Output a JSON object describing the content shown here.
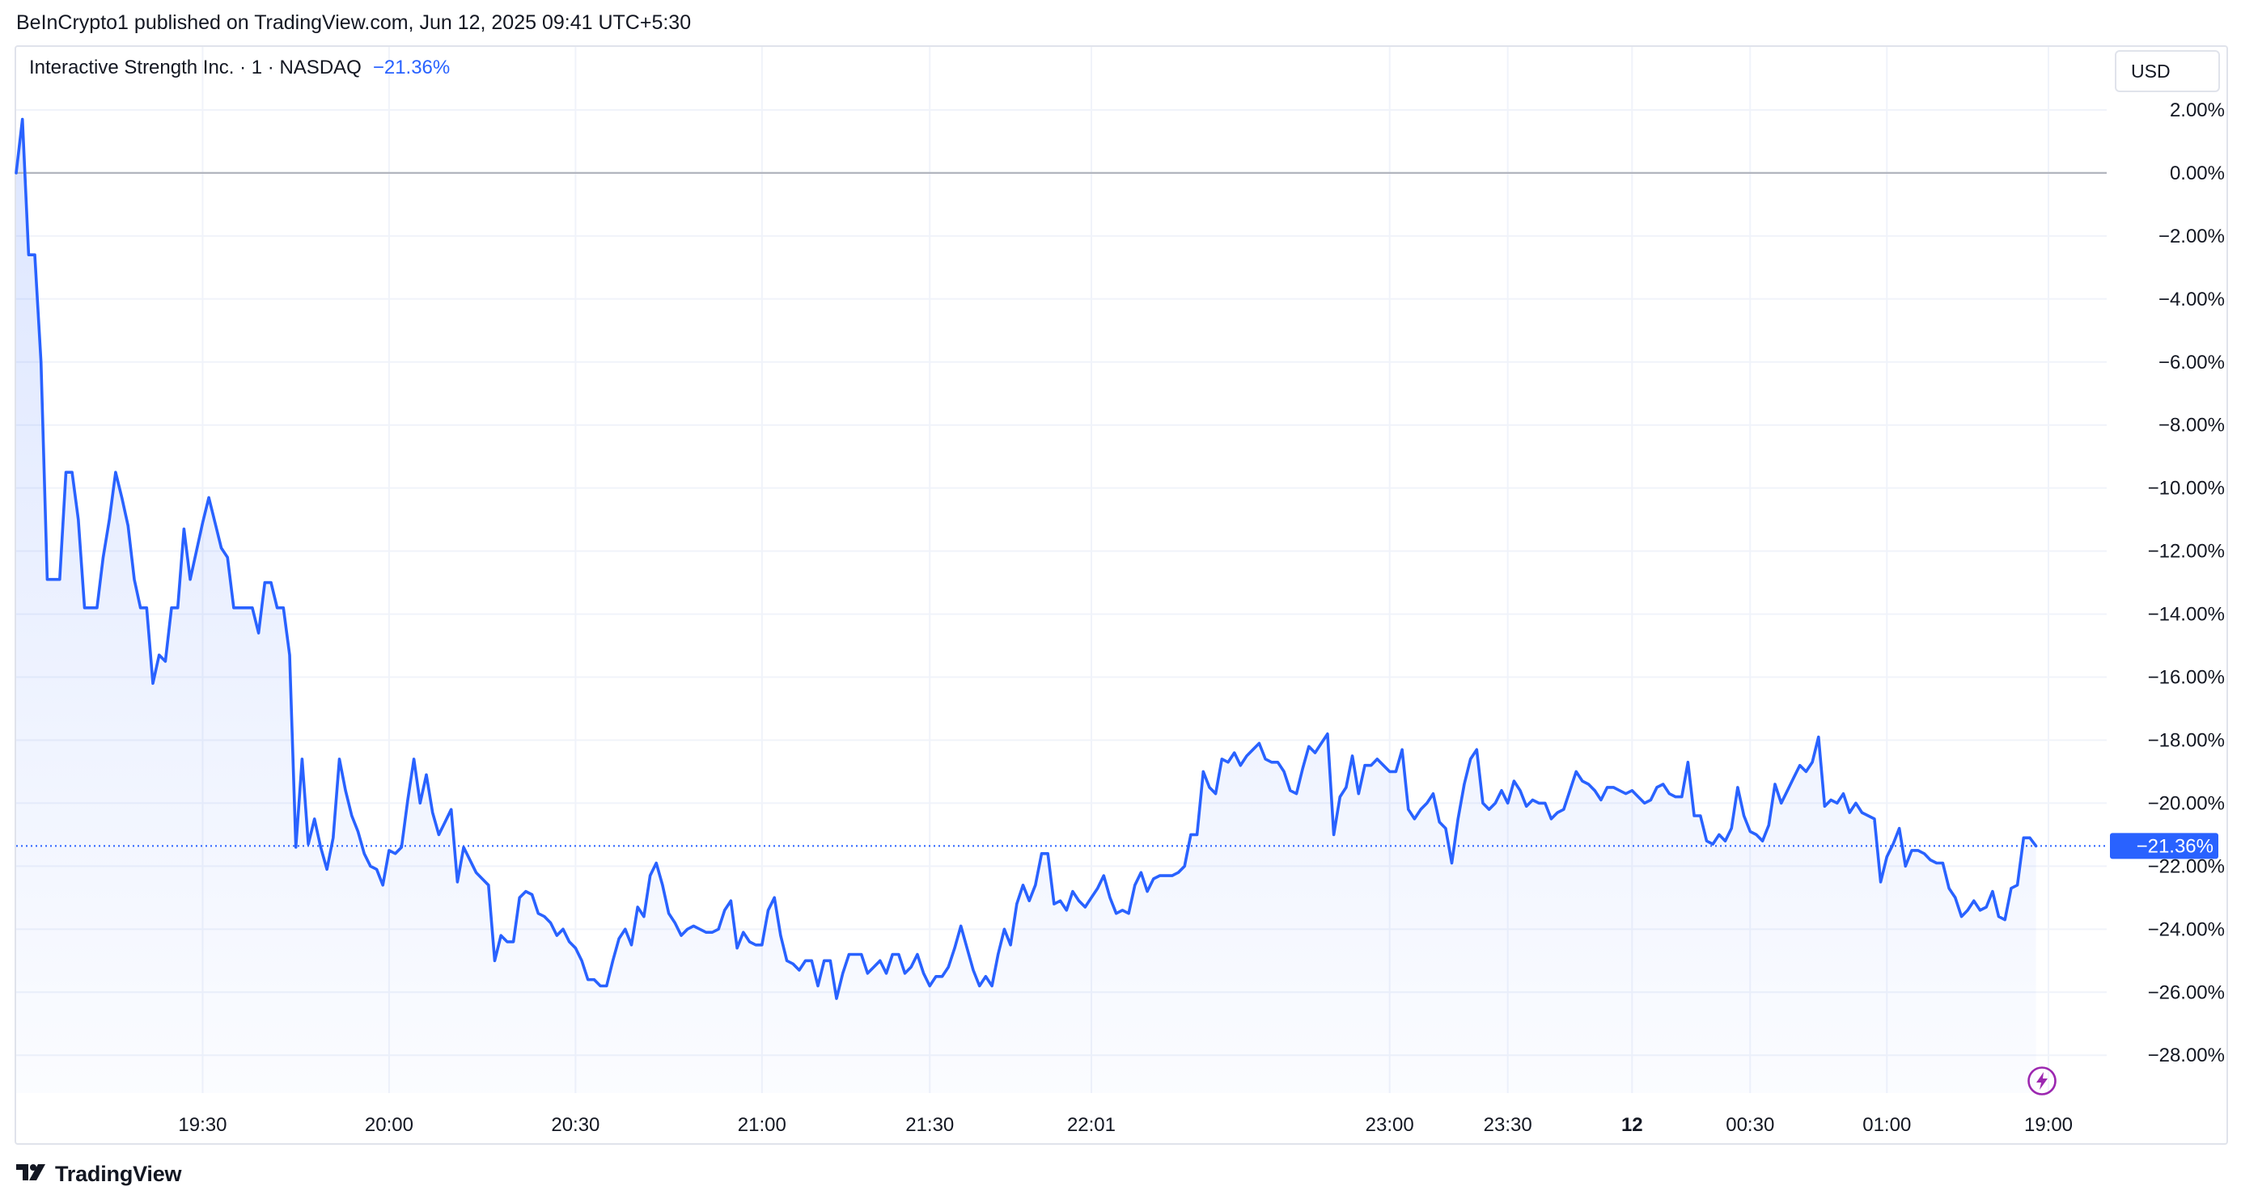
{
  "header": {
    "published_line": "BeInCrypto1 published on TradingView.com, Jun 12, 2025 09:41 UTC+5:30"
  },
  "legend": {
    "symbol": "Interactive Strength Inc. · 1 · NASDAQ",
    "change": "−21.36%"
  },
  "currency_button": {
    "label": "USD"
  },
  "footer": {
    "brand": "TradingView",
    "logo_icon": "tradingview-logo-icon"
  },
  "colors": {
    "line": "#2962ff",
    "area_top": "#2962ff",
    "grid": "#f0f3fa",
    "baseline": "#b2b5be",
    "price_label_bg": "#2962ff",
    "lightning_icon": "#9c27b0"
  },
  "chart_data": {
    "type": "area",
    "title": "",
    "xlabel": "",
    "ylabel": "",
    "y_unit": "%",
    "ylim": [
      -29.2,
      4.0
    ],
    "grid": true,
    "baseline_value": 0.0,
    "last_value": -21.36,
    "last_value_label": "−21.36%",
    "y_ticks": [
      {
        "value": 2,
        "label": "2.00%"
      },
      {
        "value": 0,
        "label": "0.00%"
      },
      {
        "value": -2,
        "label": "−2.00%"
      },
      {
        "value": -4,
        "label": "−4.00%"
      },
      {
        "value": -6,
        "label": "−6.00%"
      },
      {
        "value": -8,
        "label": "−8.00%"
      },
      {
        "value": -10,
        "label": "−10.00%"
      },
      {
        "value": -12,
        "label": "−12.00%"
      },
      {
        "value": -14,
        "label": "−14.00%"
      },
      {
        "value": -16,
        "label": "−16.00%"
      },
      {
        "value": -18,
        "label": "−18.00%"
      },
      {
        "value": -20,
        "label": "−20.00%"
      },
      {
        "value": -22,
        "label": "−22.00%"
      },
      {
        "value": -24,
        "label": "−24.00%"
      },
      {
        "value": -26,
        "label": "−26.00%"
      },
      {
        "value": -28,
        "label": "−28.00%"
      }
    ],
    "x_range": [
      0,
      327
    ],
    "x_ticks": [
      {
        "index": 30,
        "label": "19:30",
        "bold": false
      },
      {
        "index": 60,
        "label": "20:00",
        "bold": false
      },
      {
        "index": 90,
        "label": "20:30",
        "bold": false
      },
      {
        "index": 120,
        "label": "21:00",
        "bold": false
      },
      {
        "index": 147,
        "label": "21:30",
        "bold": false
      },
      {
        "index": 173,
        "label": "22:01",
        "bold": false
      },
      {
        "index": 221,
        "label": "23:00",
        "bold": false
      },
      {
        "index": 240,
        "label": "23:30",
        "bold": false
      },
      {
        "index": 260,
        "label": "12",
        "bold": true
      },
      {
        "index": 279,
        "label": "00:30",
        "bold": false
      },
      {
        "index": 301,
        "label": "01:00",
        "bold": false
      },
      {
        "index": 327,
        "label": "19:00",
        "bold": false
      }
    ],
    "series": [
      {
        "values": [
          0.0,
          1.7,
          -2.6,
          -2.6,
          -6.0,
          -12.9,
          -12.9,
          -12.9,
          -9.5,
          -9.5,
          -11.0,
          -13.8,
          -13.8,
          -13.8,
          -12.2,
          -11.0,
          -9.5,
          -10.3,
          -11.2,
          -12.9,
          -13.8,
          -13.8,
          -16.2,
          -15.3,
          -15.5,
          -13.8,
          -13.8,
          -11.3,
          -12.9,
          -12.0,
          -11.1,
          -10.3,
          -11.1,
          -11.9,
          -12.2,
          -13.8,
          -13.8,
          -13.8,
          -13.8,
          -14.6,
          -13.0,
          -13.0,
          -13.8,
          -13.8,
          -15.3,
          -21.4,
          -18.6,
          -21.3,
          -20.5,
          -21.4,
          -22.1,
          -21.1,
          -18.6,
          -19.6,
          -20.4,
          -20.9,
          -21.6,
          -22.0,
          -22.1,
          -22.6,
          -21.5,
          -21.6,
          -21.4,
          -19.9,
          -18.6,
          -20.0,
          -19.1,
          -20.3,
          -21.0,
          -20.6,
          -20.2,
          -22.5,
          -21.4,
          -21.8,
          -22.2,
          -22.4,
          -22.6,
          -25.0,
          -24.2,
          -24.4,
          -24.4,
          -23.0,
          -22.8,
          -22.9,
          -23.5,
          -23.6,
          -23.8,
          -24.2,
          -24.0,
          -24.4,
          -24.6,
          -25.0,
          -25.6,
          -25.6,
          -25.8,
          -25.8,
          -25.0,
          -24.3,
          -24.0,
          -24.5,
          -23.3,
          -23.6,
          -22.3,
          -21.9,
          -22.6,
          -23.5,
          -23.8,
          -24.2,
          -24.0,
          -23.9,
          -24.0,
          -24.1,
          -24.1,
          -24.0,
          -23.4,
          -23.1,
          -24.6,
          -24.1,
          -24.4,
          -24.5,
          -24.5,
          -23.4,
          -23.0,
          -24.2,
          -25.0,
          -25.1,
          -25.3,
          -25.0,
          -25.0,
          -25.8,
          -25.0,
          -25.0,
          -26.2,
          -25.4,
          -24.8,
          -24.8,
          -24.8,
          -25.4,
          -25.2,
          -25.0,
          -25.4,
          -24.8,
          -24.8,
          -25.4,
          -25.2,
          -24.8,
          -25.4,
          -25.8,
          -25.5,
          -25.5,
          -25.2,
          -24.6,
          -23.9,
          -24.6,
          -25.3,
          -25.8,
          -25.5,
          -25.8,
          -24.8,
          -24.0,
          -24.5,
          -23.2,
          -22.6,
          -23.1,
          -22.6,
          -21.6,
          -21.6,
          -23.2,
          -23.1,
          -23.4,
          -22.8,
          -23.1,
          -23.3,
          -23.0,
          -22.7,
          -22.3,
          -23.0,
          -23.5,
          -23.4,
          -23.5,
          -22.6,
          -22.2,
          -22.8,
          -22.4,
          -22.3,
          -22.3,
          -22.3,
          -22.2,
          -22.0,
          -21.0,
          -21.0,
          -19.0,
          -19.5,
          -19.7,
          -18.6,
          -18.7,
          -18.4,
          -18.8,
          -18.5,
          -18.3,
          -18.1,
          -18.6,
          -18.7,
          -18.7,
          -19.0,
          -19.6,
          -19.7,
          -18.9,
          -18.2,
          -18.4,
          -18.1,
          -17.8,
          -21.0,
          -19.8,
          -19.5,
          -18.5,
          -19.7,
          -18.8,
          -18.8,
          -18.6,
          -18.8,
          -19.0,
          -19.0,
          -18.3,
          -20.2,
          -20.5,
          -20.2,
          -20.0,
          -19.7,
          -20.6,
          -20.8,
          -21.9,
          -20.5,
          -19.4,
          -18.6,
          -18.3,
          -20.0,
          -20.2,
          -20.0,
          -19.6,
          -20.0,
          -19.3,
          -19.6,
          -20.1,
          -19.9,
          -20.0,
          -20.0,
          -20.5,
          -20.3,
          -20.2,
          -19.6,
          -19.0,
          -19.3,
          -19.4,
          -19.6,
          -19.9,
          -19.5,
          -19.5,
          -19.6,
          -19.7,
          -19.6,
          -19.8,
          -20.0,
          -19.9,
          -19.5,
          -19.4,
          -19.7,
          -19.8,
          -19.8,
          -18.7,
          -20.4,
          -20.4,
          -21.2,
          -21.3,
          -21.0,
          -21.2,
          -20.8,
          -19.5,
          -20.4,
          -20.9,
          -21.0,
          -21.2,
          -20.7,
          -19.4,
          -20.0,
          -19.6,
          -19.2,
          -18.8,
          -19.0,
          -18.7,
          -17.9,
          -20.1,
          -19.9,
          -20.0,
          -19.7,
          -20.3,
          -20.0,
          -20.3,
          -20.4,
          -20.5,
          -22.5,
          -21.7,
          -21.3,
          -20.8,
          -22.0,
          -21.5,
          -21.5,
          -21.6,
          -21.8,
          -21.9,
          -21.9,
          -22.7,
          -23.0,
          -23.6,
          -23.4,
          -23.1,
          -23.4,
          -23.3,
          -22.8,
          -23.6,
          -23.7,
          -22.7,
          -22.6,
          -21.1,
          -21.1,
          -21.36
        ]
      }
    ]
  }
}
